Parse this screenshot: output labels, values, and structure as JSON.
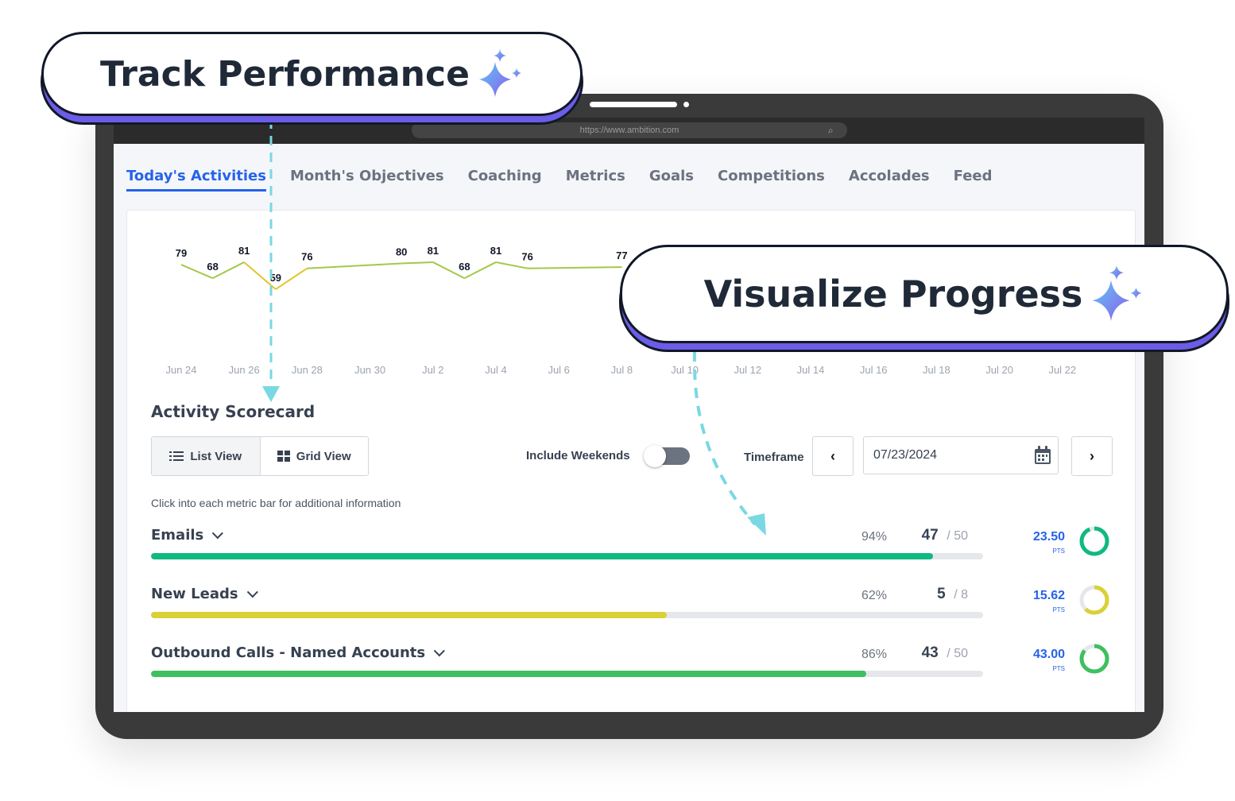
{
  "callouts": {
    "track": "Track Performance",
    "visualize": "Visualize Progress"
  },
  "browser": {
    "url": "https://www.ambition.com"
  },
  "tabs": [
    {
      "label": "Today's Activities",
      "active": true
    },
    {
      "label": "Month's Objectives"
    },
    {
      "label": "Coaching"
    },
    {
      "label": "Metrics"
    },
    {
      "label": "Goals"
    },
    {
      "label": "Competitions"
    },
    {
      "label": "Accolades"
    },
    {
      "label": "Feed"
    }
  ],
  "chart_data": {
    "type": "line",
    "xlabels": [
      "Jun 24",
      "Jun 26",
      "Jun 28",
      "Jun 30",
      "Jul 2",
      "Jul 4",
      "Jul 6",
      "Jul 8",
      "Jul 10",
      "Jul 12",
      "Jul 14",
      "Jul 16",
      "Jul 18",
      "Jul 20",
      "Jul 22"
    ],
    "series": [
      {
        "values": [
          {
            "date": "Jun 24",
            "y": 79
          },
          {
            "date": "Jun 25",
            "y": 68
          },
          {
            "date": "Jun 26",
            "y": 81
          },
          {
            "date": "Jun 27",
            "y": 59
          },
          {
            "date": "Jun 28",
            "y": 76
          },
          {
            "date": "Jul 1",
            "y": 80
          },
          {
            "date": "Jul 2",
            "y": 81
          },
          {
            "date": "Jul 3",
            "y": 68
          },
          {
            "date": "Jul 4",
            "y": 81
          },
          {
            "date": "Jul 5",
            "y": 76
          },
          {
            "date": "Jul 8",
            "y": 77
          }
        ]
      }
    ],
    "colors": {
      "line": "#a3c94a",
      "low": "#e2c430"
    }
  },
  "scorecard": {
    "title": "Activity Scorecard",
    "list_view": "List View",
    "grid_view": "Grid View",
    "include_weekends": "Include Weekends",
    "timeframe": "Timeframe",
    "date": "07/23/2024",
    "hint": "Click into each metric bar for additional information",
    "metrics": [
      {
        "name": "Emails",
        "pct": "94%",
        "count": "47",
        "target": "/ 50",
        "progress": 0.94,
        "points": "23.50",
        "pts_label": "PTS",
        "color": "#10b981"
      },
      {
        "name": "New Leads",
        "pct": "62%",
        "count": "5",
        "target": "/ 8",
        "progress": 0.62,
        "points": "15.62",
        "pts_label": "PTS",
        "color": "#d9d136"
      },
      {
        "name": "Outbound Calls - Named Accounts",
        "pct": "86%",
        "count": "43",
        "target": "/ 50",
        "progress": 0.86,
        "points": "43.00",
        "pts_label": "PTS",
        "color": "#3fbf5f"
      }
    ]
  }
}
